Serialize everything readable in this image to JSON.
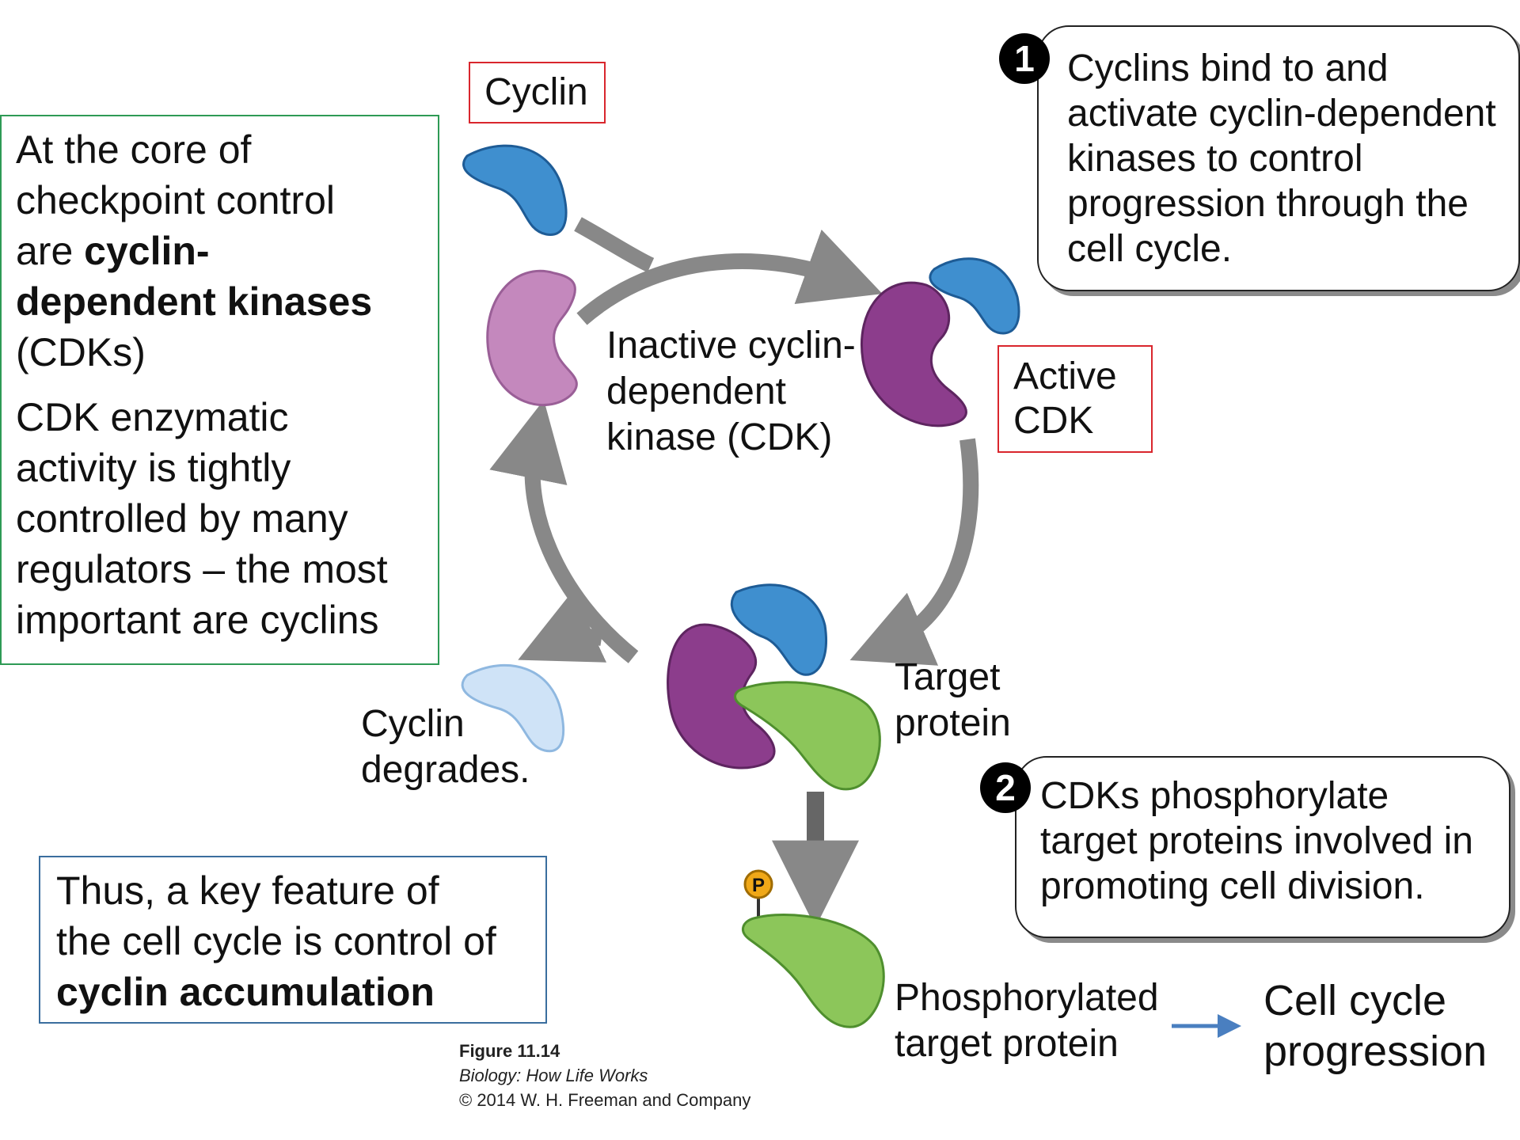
{
  "left_box": {
    "line1": "At the core of",
    "line2": "checkpoint control",
    "line3a": "are ",
    "line3b": "cyclin-",
    "line4": "dependent kinases",
    "line5": "(CDKs)",
    "p2_line1": "CDK enzymatic",
    "p2_line2": "activity is tightly",
    "p2_line3": "controlled by many",
    "p2_line4": "regulators – the most",
    "p2_line5": "important are cyclins"
  },
  "bottom_box": {
    "line1": "Thus, a key feature of",
    "line2": "the cell cycle is control of",
    "line3": "cyclin accumulation"
  },
  "labels": {
    "cyclin": "Cyclin",
    "inactive_line1": "Inactive cyclin-",
    "inactive_line2": "dependent",
    "inactive_line3": "kinase (CDK)",
    "active_line1": "Active",
    "active_line2": "CDK",
    "target_line1": "Target",
    "target_line2": "protein",
    "degrades_line1": "Cyclin",
    "degrades_line2": "degrades.",
    "phos_line1": "Phosphorylated",
    "phos_line2": "target protein",
    "progress_line1": "Cell cycle",
    "progress_line2": "progression",
    "phosphate": "P"
  },
  "callout1": {
    "number": "1",
    "line1": "Cyclins bind to and",
    "line2": "activate cyclin-dependent",
    "line3": "kinases to control",
    "line4": "progression through the",
    "line5": "cell cycle."
  },
  "callout2": {
    "number": "2",
    "line1": "CDKs phosphorylate",
    "line2": "target proteins involved in",
    "line3": "promoting cell division."
  },
  "caption": {
    "figure": "Figure 11.14",
    "book": "Biology: How Life Works",
    "copyright": "© 2014 W. H. Freeman and Company"
  },
  "colors": {
    "cyclin_blue": "#3f8fcf",
    "cdk_inactive": "#c488bd",
    "cdk_active": "#8c3d8c",
    "target_green": "#8cc65a",
    "degraded_cyclin": "#cfe3f7",
    "arrow_gray": "#888888",
    "phosphate_orange": "#f0a818"
  }
}
